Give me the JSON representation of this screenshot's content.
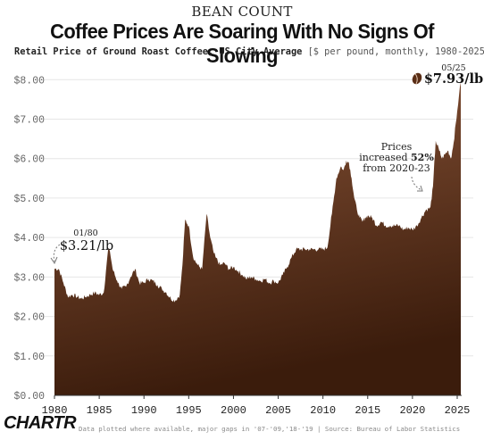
{
  "header": {
    "kicker": "BEAN COUNT",
    "title": "Coffee Prices Are Soaring With No Signs Of Slowing",
    "subtitle_main": "Retail Price of Ground Roast Coffee, US City Average",
    "subtitle_unit": "[$ per pound, monthly, 1980-2025]"
  },
  "footer": {
    "note": "Data plotted where available, major gaps in '07-'09,'18-'19 | Source: Bureau of Labor Statistics",
    "logo": "CHARTR"
  },
  "chart_data": {
    "type": "area",
    "x_ticks": [
      "1980",
      "1985",
      "1990",
      "1995",
      "2000",
      "2005",
      "2010",
      "2015",
      "2020",
      "2025"
    ],
    "y_ticks": [
      "$0.00",
      "$1.00",
      "$2.00",
      "$3.00",
      "$4.00",
      "$5.00",
      "$6.00",
      "$7.00",
      "$8.00"
    ],
    "ylim": [
      0,
      8.3
    ],
    "xlim": [
      1980,
      2025.5
    ],
    "grid": true,
    "colors": {
      "top": "#8a5538",
      "bottom": "#3b1c0c",
      "grid": "#e6e6e6"
    },
    "series": [
      {
        "x": [
          1980.0,
          1980.5,
          1981.0,
          1981.5,
          1982.0,
          1982.5,
          1983.0,
          1983.5,
          1984.0,
          1984.5,
          1985.0,
          1985.5,
          1986.0,
          1986.2,
          1986.5,
          1987.0,
          1987.5,
          1988.0,
          1988.5,
          1989.0,
          1989.5,
          1990.0,
          1990.5,
          1991.0,
          1991.5,
          1992.0,
          1992.5,
          1993.0,
          1993.5,
          1994.0,
          1994.3,
          1994.6,
          1995.0,
          1995.5,
          1996.0,
          1996.5,
          1997.0,
          1997.4,
          1997.8,
          1998.0,
          1998.5,
          1999.0,
          1999.5,
          2000.0,
          2000.5,
          2001.0,
          2001.5,
          2002.0,
          2002.5,
          2003.0,
          2003.5,
          2004.0,
          2004.5,
          2005.0,
          2005.5,
          2006.0,
          2006.5,
          2007.0,
          2007.5,
          2008.0,
          2008.5,
          2009.0,
          2009.5,
          2010.0,
          2010.5,
          2011.0,
          2011.5,
          2012.0,
          2012.3,
          2012.6,
          2012.9,
          2013.2,
          2013.5,
          2013.8,
          2014.1,
          2014.4,
          2014.7,
          2015.0,
          2015.5,
          2016.0,
          2016.5,
          2017.0,
          2017.5,
          2018.0,
          2018.5,
          2019.0,
          2019.5,
          2020.0,
          2020.5,
          2021.0,
          2021.5,
          2022.0,
          2022.3,
          2022.6,
          2023.0,
          2023.3,
          2023.6,
          2024.0,
          2024.3,
          2024.6,
          2025.0,
          2025.2,
          2025.4
        ],
        "y": [
          3.21,
          3.2,
          2.85,
          2.5,
          2.55,
          2.5,
          2.45,
          2.5,
          2.55,
          2.6,
          2.55,
          2.6,
          3.7,
          3.65,
          3.2,
          2.9,
          2.7,
          2.75,
          3.0,
          3.2,
          2.85,
          2.85,
          2.95,
          2.9,
          2.8,
          2.7,
          2.6,
          2.45,
          2.4,
          2.55,
          3.3,
          4.45,
          4.3,
          3.5,
          3.3,
          3.2,
          4.6,
          4.0,
          3.6,
          3.5,
          3.3,
          3.35,
          3.2,
          3.25,
          3.15,
          3.05,
          2.95,
          3.0,
          2.95,
          2.9,
          2.95,
          2.85,
          2.9,
          2.85,
          3.05,
          3.25,
          3.5,
          3.7,
          3.7,
          3.7,
          3.7,
          3.7,
          3.7,
          3.7,
          3.75,
          4.6,
          5.5,
          5.8,
          5.7,
          5.95,
          5.9,
          5.5,
          5.0,
          4.7,
          4.5,
          4.4,
          4.5,
          4.55,
          4.5,
          4.3,
          4.4,
          4.3,
          4.3,
          4.3,
          4.3,
          4.2,
          4.25,
          4.2,
          4.3,
          4.5,
          4.7,
          4.75,
          5.3,
          6.45,
          6.2,
          6.0,
          6.1,
          6.2,
          6.0,
          6.4,
          7.2,
          7.6,
          7.93
        ]
      }
    ],
    "annotations": {
      "start": {
        "date": "01/80",
        "value": "$3.21/lb"
      },
      "end": {
        "date": "05/25",
        "value": "$7.93/lb"
      },
      "note": {
        "line1": "Prices",
        "line2_prefix": "increased ",
        "line2_pct": "52%",
        "line3": "from 2020-23"
      }
    }
  }
}
